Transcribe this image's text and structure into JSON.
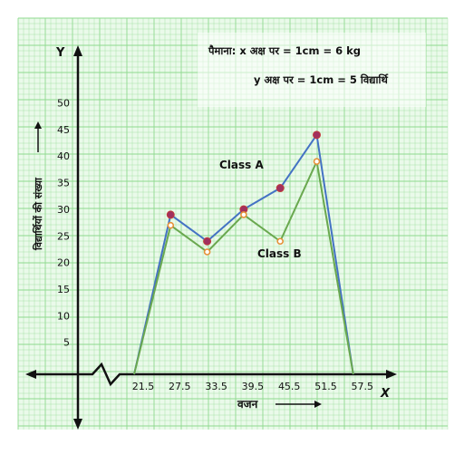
{
  "chart_data": {
    "type": "line",
    "x_tick_labels": [
      "21.5",
      "27.5",
      "33.5",
      "39.5",
      "45.5",
      "51.5",
      "57.5"
    ],
    "y_tick_labels": [
      "5",
      "10",
      "15",
      "20",
      "25",
      "30",
      "35",
      "40",
      "45",
      "50"
    ],
    "x_axis_letter": "X",
    "y_axis_letter": "Y",
    "xlabel": "वजन",
    "ylabel": "विद्यार्थियों की संख्या",
    "scale_line1": "पैमाना: x अक्ष पर = 1cm = 6 kg",
    "scale_line2": "y अक्ष पर = 1cm = 5 विद्यार्थि",
    "series": [
      {
        "name": "Class A",
        "color": "#4472c4",
        "marker_color": "#a0305e",
        "x": [
          21.5,
          27.5,
          33.5,
          39.5,
          45.5,
          51.5,
          57.5
        ],
        "y": [
          0,
          30,
          25,
          31,
          35,
          45,
          0
        ]
      },
      {
        "name": "Class B",
        "color": "#6aa84f",
        "marker_color": "#e69138",
        "x": [
          21.5,
          27.5,
          33.5,
          39.5,
          45.5,
          51.5,
          57.5
        ],
        "y": [
          0,
          28,
          23,
          30,
          25,
          40,
          0
        ]
      }
    ],
    "grid": true,
    "grid_color": "#8fd98f",
    "background": "#eafaea"
  }
}
